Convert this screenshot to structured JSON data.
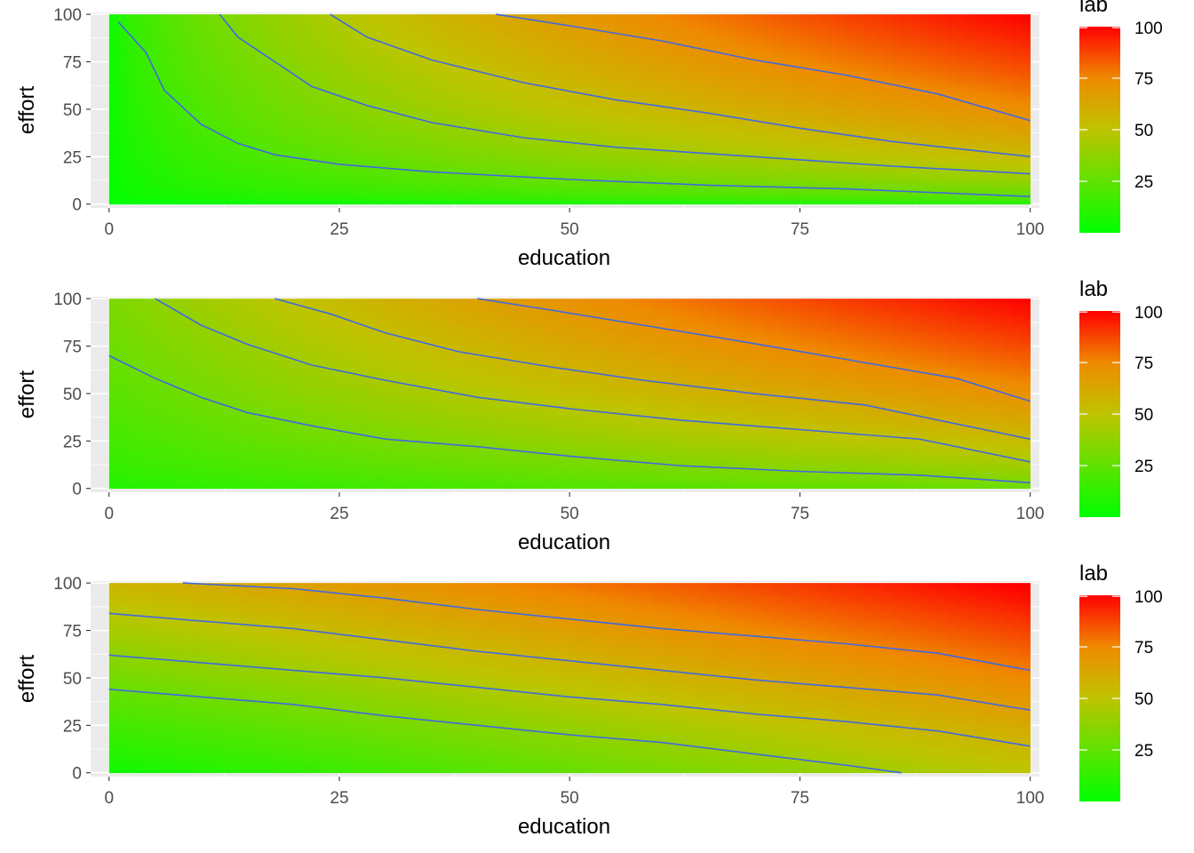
{
  "chart_data": [
    {
      "type": "heatmap",
      "panel": 1,
      "xlabel": "education",
      "ylabel": "effort",
      "xlim": [
        -2,
        101
      ],
      "ylim": [
        -2,
        101
      ],
      "x_ticks": [
        0,
        25,
        50,
        75,
        100
      ],
      "y_ticks": [
        0,
        25,
        50,
        75,
        100
      ],
      "fill_variable": "lab",
      "fill_range": [
        0,
        100
      ],
      "fill_colors": {
        "low": "#00ff00",
        "high": "#ff0000"
      },
      "legend": {
        "title": "lab",
        "breaks": [
          25,
          50,
          75,
          100
        ],
        "position": "right"
      },
      "contour_color": "#4169e1",
      "contour_levels": [
        20,
        40,
        60,
        80
      ],
      "contours": [
        {
          "level": 20,
          "points": [
            [
              1,
              96
            ],
            [
              4,
              80
            ],
            [
              6,
              60
            ],
            [
              10,
              42
            ],
            [
              14,
              32
            ],
            [
              18,
              26
            ],
            [
              25,
              21
            ],
            [
              35,
              17
            ],
            [
              50,
              13
            ],
            [
              65,
              10
            ],
            [
              80,
              8
            ],
            [
              100,
              4
            ]
          ]
        },
        {
          "level": 40,
          "points": [
            [
              12,
              100
            ],
            [
              14,
              88
            ],
            [
              18,
              75
            ],
            [
              22,
              62
            ],
            [
              28,
              52
            ],
            [
              35,
              43
            ],
            [
              45,
              35
            ],
            [
              55,
              30
            ],
            [
              70,
              25
            ],
            [
              85,
              20
            ],
            [
              100,
              16
            ]
          ]
        },
        {
          "level": 60,
          "points": [
            [
              24,
              100
            ],
            [
              28,
              88
            ],
            [
              35,
              76
            ],
            [
              45,
              64
            ],
            [
              55,
              55
            ],
            [
              65,
              48
            ],
            [
              75,
              40
            ],
            [
              85,
              33
            ],
            [
              100,
              25
            ]
          ]
        },
        {
          "level": 80,
          "points": [
            [
              42,
              100
            ],
            [
              50,
              94
            ],
            [
              60,
              86
            ],
            [
              70,
              76
            ],
            [
              80,
              68
            ],
            [
              90,
              58
            ],
            [
              100,
              44
            ]
          ]
        }
      ]
    },
    {
      "type": "heatmap",
      "panel": 2,
      "xlabel": "education",
      "ylabel": "effort",
      "xlim": [
        -2,
        101
      ],
      "ylim": [
        -2,
        101
      ],
      "x_ticks": [
        0,
        25,
        50,
        75,
        100
      ],
      "y_ticks": [
        0,
        25,
        50,
        75,
        100
      ],
      "fill_variable": "lab",
      "fill_range": [
        0,
        100
      ],
      "fill_colors": {
        "low": "#00ff00",
        "high": "#ff0000"
      },
      "legend": {
        "title": "lab",
        "breaks": [
          25,
          50,
          75,
          100
        ],
        "position": "right"
      },
      "contour_color": "#4169e1",
      "contour_levels": [
        20,
        40,
        60,
        80
      ],
      "contours": [
        {
          "level": 20,
          "points": [
            [
              0,
              70
            ],
            [
              5,
              58
            ],
            [
              10,
              48
            ],
            [
              15,
              40
            ],
            [
              22,
              33
            ],
            [
              30,
              26
            ],
            [
              40,
              22
            ],
            [
              50,
              17
            ],
            [
              62,
              12
            ],
            [
              75,
              9
            ],
            [
              88,
              7
            ],
            [
              100,
              3
            ]
          ]
        },
        {
          "level": 40,
          "points": [
            [
              5,
              100
            ],
            [
              10,
              86
            ],
            [
              15,
              76
            ],
            [
              22,
              65
            ],
            [
              30,
              57
            ],
            [
              40,
              48
            ],
            [
              50,
              42
            ],
            [
              62,
              36
            ],
            [
              75,
              31
            ],
            [
              88,
              26
            ],
            [
              100,
              14
            ]
          ]
        },
        {
          "level": 60,
          "points": [
            [
              18,
              100
            ],
            [
              24,
              92
            ],
            [
              30,
              82
            ],
            [
              38,
              72
            ],
            [
              48,
              64
            ],
            [
              58,
              57
            ],
            [
              70,
              50
            ],
            [
              82,
              44
            ],
            [
              100,
              26
            ]
          ]
        },
        {
          "level": 80,
          "points": [
            [
              40,
              100
            ],
            [
              48,
              94
            ],
            [
              58,
              86
            ],
            [
              68,
              78
            ],
            [
              80,
              68
            ],
            [
              92,
              58
            ],
            [
              100,
              46
            ]
          ]
        }
      ]
    },
    {
      "type": "heatmap",
      "panel": 3,
      "xlabel": "education",
      "ylabel": "effort",
      "xlim": [
        -2,
        101
      ],
      "ylim": [
        -2,
        101
      ],
      "x_ticks": [
        0,
        25,
        50,
        75,
        100
      ],
      "y_ticks": [
        0,
        25,
        50,
        75,
        100
      ],
      "fill_variable": "lab",
      "fill_range": [
        0,
        100
      ],
      "fill_colors": {
        "low": "#00ff00",
        "high": "#ff0000"
      },
      "legend": {
        "title": "lab",
        "breaks": [
          25,
          50,
          75,
          100
        ],
        "position": "right"
      },
      "contour_color": "#4169e1",
      "contour_levels": [
        20,
        40,
        60,
        80
      ],
      "contours": [
        {
          "level": 20,
          "points": [
            [
              0,
              44
            ],
            [
              10,
              40
            ],
            [
              20,
              36
            ],
            [
              30,
              30
            ],
            [
              40,
              25
            ],
            [
              50,
              20
            ],
            [
              60,
              16
            ],
            [
              70,
              10
            ],
            [
              80,
              4
            ],
            [
              86,
              0
            ]
          ]
        },
        {
          "level": 40,
          "points": [
            [
              0,
              62
            ],
            [
              10,
              58
            ],
            [
              20,
              54
            ],
            [
              30,
              50
            ],
            [
              40,
              45
            ],
            [
              50,
              40
            ],
            [
              60,
              36
            ],
            [
              70,
              31
            ],
            [
              80,
              27
            ],
            [
              90,
              22
            ],
            [
              100,
              14
            ]
          ]
        },
        {
          "level": 60,
          "points": [
            [
              0,
              84
            ],
            [
              10,
              80
            ],
            [
              20,
              76
            ],
            [
              30,
              70
            ],
            [
              40,
              64
            ],
            [
              50,
              59
            ],
            [
              60,
              54
            ],
            [
              70,
              49
            ],
            [
              80,
              45
            ],
            [
              90,
              41
            ],
            [
              100,
              33
            ]
          ]
        },
        {
          "level": 80,
          "points": [
            [
              8,
              100
            ],
            [
              20,
              97
            ],
            [
              30,
              92
            ],
            [
              40,
              86
            ],
            [
              50,
              81
            ],
            [
              60,
              76
            ],
            [
              70,
              72
            ],
            [
              80,
              68
            ],
            [
              90,
              63
            ],
            [
              100,
              54
            ]
          ]
        }
      ]
    }
  ]
}
